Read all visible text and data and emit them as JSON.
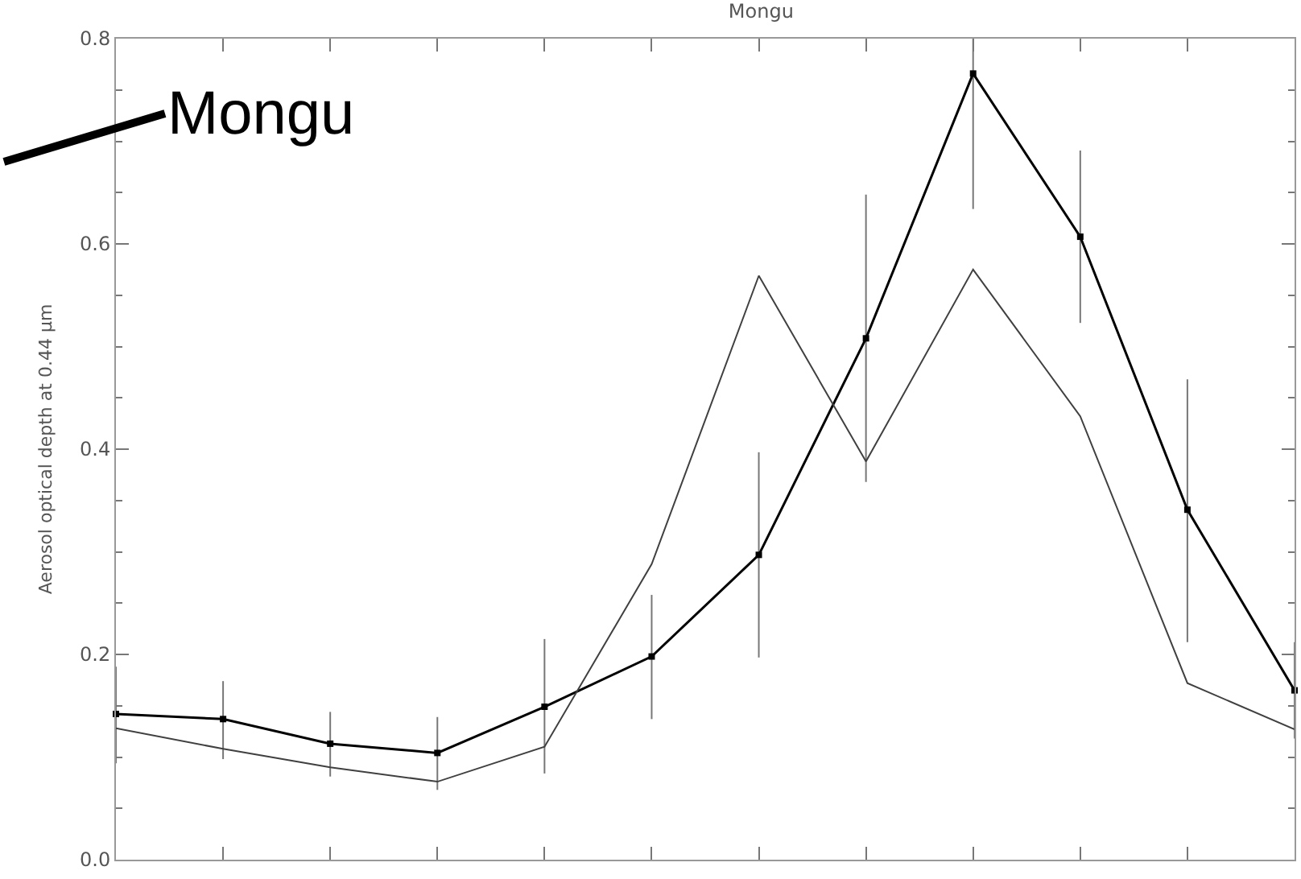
{
  "chart_data": {
    "type": "line",
    "title": "Mongu",
    "ylabel": "Aerosol optical depth at 0.44 μm",
    "categories": [
      null,
      null,
      null,
      null,
      null,
      null,
      null,
      null,
      null,
      null,
      null,
      null
    ],
    "series": [
      {
        "color": "#000000",
        "marker": "square",
        "values": [
          0.142,
          0.137,
          0.113,
          0.104,
          0.149,
          0.198,
          0.297,
          0.508,
          0.766,
          0.607,
          0.341,
          0.165
        ],
        "errors": [
          [
            0.094,
            0.188
          ],
          [
            0.098,
            0.174
          ],
          [
            0.081,
            0.144
          ],
          [
            0.068,
            0.139
          ],
          [
            0.084,
            0.215
          ],
          [
            0.137,
            0.258
          ],
          [
            0.197,
            0.397
          ],
          [
            0.368,
            0.648
          ],
          [
            0.634,
            0.8
          ],
          [
            0.523,
            0.691
          ],
          [
            0.212,
            0.468
          ],
          [
            0.118,
            0.212
          ]
        ]
      },
      {
        "color": "#404040",
        "marker": "none",
        "values": [
          0.128,
          0.108,
          0.09,
          0.076,
          0.11,
          0.288,
          0.569,
          0.388,
          0.575,
          0.432,
          0.172,
          0.127
        ]
      }
    ],
    "ylim": [
      0,
      0.8
    ],
    "yticks": [
      {
        "value": 0,
        "label": "0.0"
      },
      {
        "value": 0.2,
        "label": "0.2"
      },
      {
        "value": 0.4,
        "label": "0.4"
      },
      {
        "value": 0.6,
        "label": "0.6"
      },
      {
        "value": 0.8,
        "label": "0.8"
      }
    ],
    "tick_labels": "y",
    "line_style": "solid",
    "annotations": [
      "Mongu"
    ]
  }
}
